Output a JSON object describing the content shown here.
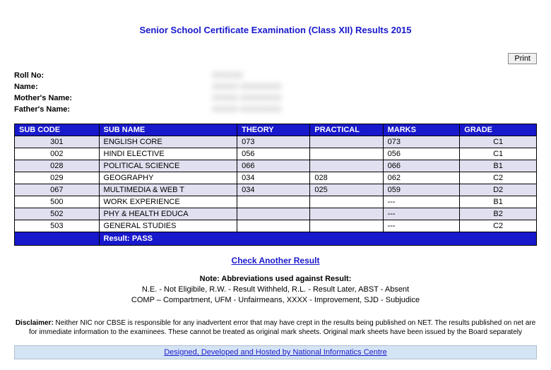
{
  "title": "Senior School Certificate Examination (Class XII) Results 2015",
  "print_label": "Print",
  "student": {
    "roll_label": "Roll No:",
    "name_label": "Name:",
    "mother_label": "Mother's Name:",
    "father_label": "Father's Name:",
    "roll_value": "XXXXXX",
    "name_value": "XXXXX XXXXXXXX",
    "mother_value": "XXXXX XXXXXXXX",
    "father_value": "XXXXX XXXXXXXX"
  },
  "headers": {
    "code": "SUB CODE",
    "name": "SUB NAME",
    "theory": "THEORY",
    "practical": "PRACTICAL",
    "marks": "MARKS",
    "grade": "GRADE"
  },
  "rows": [
    {
      "code": "301",
      "name": "ENGLISH CORE",
      "theory": "073",
      "practical": "",
      "marks": "073",
      "grade": "C1",
      "cls": "odd"
    },
    {
      "code": "002",
      "name": "HINDI ELECTIVE",
      "theory": "056",
      "practical": "",
      "marks": "056",
      "grade": "C1",
      "cls": "even"
    },
    {
      "code": "028",
      "name": "POLITICAL SCIENCE",
      "theory": "066",
      "practical": "",
      "marks": "066",
      "grade": "B1",
      "cls": "odd"
    },
    {
      "code": "029",
      "name": "GEOGRAPHY",
      "theory": "034",
      "practical": "028",
      "marks": "062",
      "grade": "C2",
      "cls": "even"
    },
    {
      "code": "067",
      "name": "MULTIMEDIA & WEB T",
      "theory": "034",
      "practical": "025",
      "marks": "059",
      "grade": "D2",
      "cls": "odd"
    },
    {
      "code": "500",
      "name": "WORK EXPERIENCE",
      "theory": "",
      "practical": "",
      "marks": "---",
      "grade": "B1",
      "cls": "even"
    },
    {
      "code": "502",
      "name": "PHY & HEALTH EDUCA",
      "theory": "",
      "practical": "",
      "marks": "---",
      "grade": "B2",
      "cls": "odd"
    },
    {
      "code": "503",
      "name": "GENERAL STUDIES",
      "theory": "",
      "practical": "",
      "marks": "---",
      "grade": "C2",
      "cls": "even"
    }
  ],
  "result_label": "Result:   PASS",
  "check_link": "Check Another Result",
  "abbrev": {
    "title": "Note: Abbreviations used against Result:",
    "line1": "N.E. - Not Eligibile, R.W. - Result Withheld, R.L. - Result Later, ABST - Absent",
    "line2": "COMP – Compartment, UFM - Unfairmeans, XXXX - Improvement, SJD - Subjudice"
  },
  "disclaimer_label": "Disclaimer:",
  "disclaimer_text": " Neither NIC nor CBSE is responsible for any inadvertent error that may have crept in the results being published on NET. The results published on net are for immediate information to the examinees. These cannot be treated as original mark sheets. Original mark sheets have been issued by the Board separately",
  "footer_link": "Designed, Developed and Hosted by National Informatics Centre"
}
